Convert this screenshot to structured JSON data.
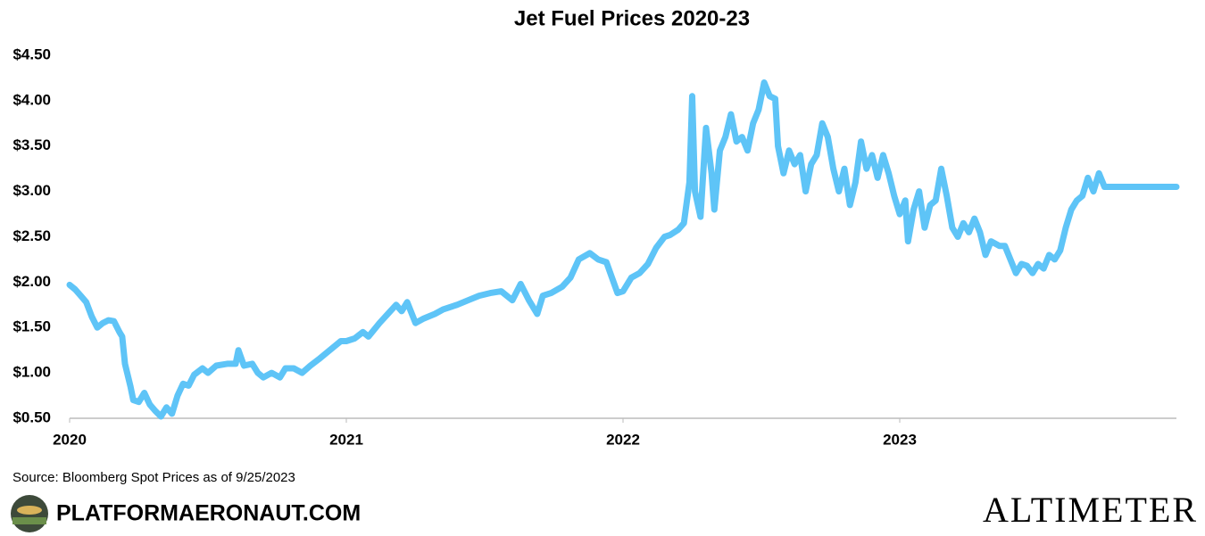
{
  "chart_data": {
    "type": "line",
    "title": "Jet Fuel Prices 2020-23",
    "source": "Source: Bloomberg Spot Prices as of 9/25/2023",
    "brand": "PLATFORMAERONAUT.COM",
    "logo": "ALTIMETER",
    "xlim": [
      2020,
      2024
    ],
    "xticks": [
      2020,
      2021,
      2022,
      2023
    ],
    "ylim": [
      0.5,
      4.5
    ],
    "yticks": [
      {
        "value": 0.5,
        "label": "$0.50"
      },
      {
        "value": 1,
        "label": "$1.00"
      },
      {
        "value": 1.5,
        "label": "$1.50"
      },
      {
        "value": 2,
        "label": "$2.00"
      },
      {
        "value": 2.5,
        "label": "$2.50"
      },
      {
        "value": 3,
        "label": "$3.00"
      },
      {
        "value": 3.5,
        "label": "$3.50"
      },
      {
        "value": 4,
        "label": "$4.00"
      },
      {
        "value": 4.5,
        "label": "$4.50"
      }
    ],
    "grid": false,
    "series": [
      {
        "name": "Jet Fuel",
        "color": "#5ec4f7",
        "x": [
          2020.0,
          2020.02,
          2020.04,
          2020.06,
          2020.08,
          2020.1,
          2020.12,
          2020.14,
          2020.16,
          2020.18,
          2020.19,
          2020.2,
          2020.22,
          2020.23,
          2020.25,
          2020.27,
          2020.29,
          2020.31,
          2020.33,
          2020.35,
          2020.37,
          2020.39,
          2020.41,
          2020.43,
          2020.45,
          2020.48,
          2020.5,
          2020.53,
          2020.57,
          2020.6,
          2020.61,
          2020.63,
          2020.66,
          2020.68,
          2020.7,
          2020.73,
          2020.76,
          2020.78,
          2020.81,
          2020.84,
          2020.87,
          2020.9,
          2020.94,
          2020.98,
          2021.0,
          2021.03,
          2021.06,
          2021.08,
          2021.12,
          2021.15,
          2021.18,
          2021.2,
          2021.22,
          2021.25,
          2021.28,
          2021.32,
          2021.35,
          2021.4,
          2021.44,
          2021.48,
          2021.52,
          2021.56,
          2021.6,
          2021.63,
          2021.66,
          2021.69,
          2021.71,
          2021.74,
          2021.78,
          2021.81,
          2021.84,
          2021.88,
          2021.91,
          2021.94,
          2021.96,
          2021.98,
          2022.0,
          2022.03,
          2022.06,
          2022.09,
          2022.12,
          2022.15,
          2022.17,
          2022.2,
          2022.22,
          2022.24,
          2022.25,
          2022.26,
          2022.28,
          2022.3,
          2022.32,
          2022.33,
          2022.35,
          2022.37,
          2022.39,
          2022.41,
          2022.43,
          2022.45,
          2022.47,
          2022.49,
          2022.51,
          2022.53,
          2022.55,
          2022.56,
          2022.58,
          2022.6,
          2022.62,
          2022.64,
          2022.66,
          2022.68,
          2022.7,
          2022.72,
          2022.74,
          2022.76,
          2022.78,
          2022.8,
          2022.82,
          2022.84,
          2022.86,
          2022.88,
          2022.9,
          2022.92,
          2022.94,
          2022.96,
          2022.98,
          2023.0,
          2023.02,
          2023.03,
          2023.05,
          2023.07,
          2023.09,
          2023.11,
          2023.13,
          2023.15,
          2023.17,
          2023.19,
          2023.21,
          2023.23,
          2023.25,
          2023.27,
          2023.29,
          2023.31,
          2023.33,
          2023.36,
          2023.38,
          2023.4,
          2023.42,
          2023.44,
          2023.46,
          2023.48,
          2023.5,
          2023.52,
          2023.54,
          2023.56,
          2023.58,
          2023.6,
          2023.62,
          2023.64,
          2023.66,
          2023.68,
          2023.7,
          2023.72,
          2023.74,
          2023.76,
          2024.0
        ],
        "values": [
          1.97,
          1.92,
          1.85,
          1.78,
          1.62,
          1.5,
          1.55,
          1.58,
          1.57,
          1.45,
          1.4,
          1.1,
          0.85,
          0.7,
          0.68,
          0.78,
          0.65,
          0.58,
          0.52,
          0.62,
          0.55,
          0.75,
          0.88,
          0.86,
          0.98,
          1.05,
          1.0,
          1.08,
          1.1,
          1.1,
          1.25,
          1.08,
          1.1,
          1.0,
          0.95,
          1.0,
          0.95,
          1.05,
          1.05,
          1.0,
          1.08,
          1.15,
          1.25,
          1.35,
          1.35,
          1.38,
          1.45,
          1.4,
          1.55,
          1.65,
          1.75,
          1.68,
          1.78,
          1.55,
          1.6,
          1.65,
          1.7,
          1.75,
          1.8,
          1.85,
          1.88,
          1.9,
          1.8,
          1.98,
          1.8,
          1.65,
          1.85,
          1.88,
          1.95,
          2.05,
          2.25,
          2.32,
          2.25,
          2.22,
          2.05,
          1.88,
          1.9,
          2.05,
          2.1,
          2.2,
          2.38,
          2.5,
          2.52,
          2.58,
          2.65,
          3.1,
          4.05,
          3.0,
          2.72,
          3.7,
          3.2,
          2.8,
          3.45,
          3.6,
          3.85,
          3.55,
          3.6,
          3.45,
          3.75,
          3.9,
          4.2,
          4.05,
          4.02,
          3.5,
          3.2,
          3.45,
          3.3,
          3.4,
          3.0,
          3.3,
          3.4,
          3.75,
          3.6,
          3.25,
          3.0,
          3.25,
          2.85,
          3.1,
          3.55,
          3.25,
          3.4,
          3.15,
          3.4,
          3.2,
          2.95,
          2.75,
          2.9,
          2.45,
          2.8,
          3.0,
          2.6,
          2.85,
          2.9,
          3.25,
          2.95,
          2.6,
          2.5,
          2.65,
          2.55,
          2.7,
          2.55,
          2.3,
          2.45,
          2.4,
          2.4,
          2.25,
          2.1,
          2.2,
          2.18,
          2.1,
          2.2,
          2.15,
          2.3,
          2.25,
          2.35,
          2.6,
          2.8,
          2.9,
          2.95,
          3.15,
          3.0,
          3.2,
          3.05,
          3.05,
          3.05
        ]
      }
    ]
  }
}
